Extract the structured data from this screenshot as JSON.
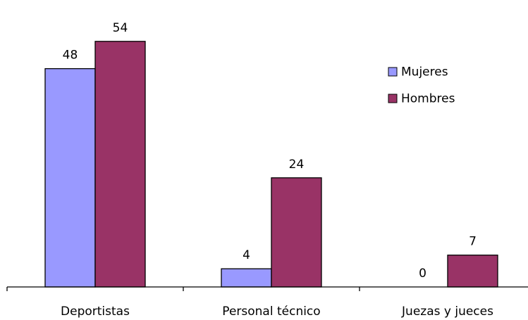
{
  "chart_data": {
    "type": "bar",
    "categories": [
      "Deportistas",
      "Personal técnico",
      "Juezas y jueces"
    ],
    "series": [
      {
        "name": "Mujeres",
        "values": [
          48,
          4,
          0
        ],
        "color": "#9999ff"
      },
      {
        "name": "Hombres",
        "values": [
          54,
          24,
          7
        ],
        "color": "#993366"
      }
    ],
    "ylim": [
      0,
      60
    ],
    "grid": false,
    "legend": "top-right"
  }
}
